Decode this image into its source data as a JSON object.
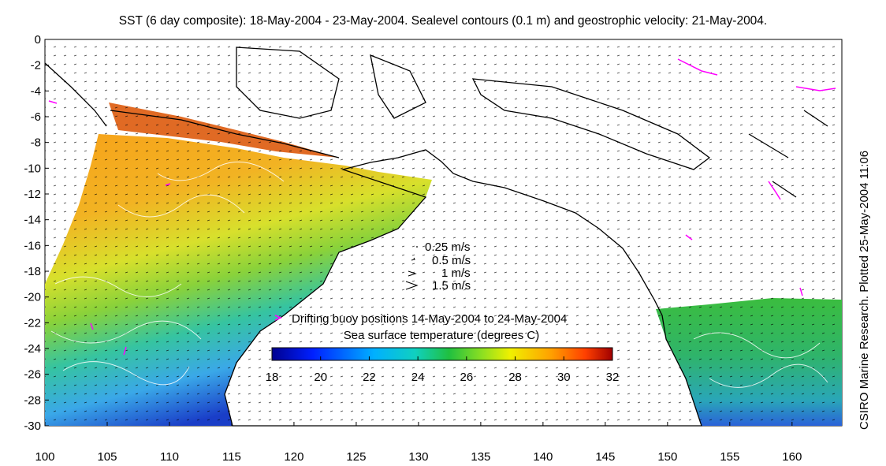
{
  "title": "SST (6 day composite): 18-May-2004 - 23-May-2004. Sealevel contours (0.1 m) and geostrophic velocity: 21-May-2004.",
  "credit": "CSIRO Marine Research. Plotted 25-May-2004 11:06",
  "x_ticks": [
    "100",
    "105",
    "110",
    "115",
    "120",
    "125",
    "130",
    "135",
    "140",
    "145",
    "150",
    "155",
    "160"
  ],
  "y_ticks": [
    "0",
    "-2",
    "-4",
    "-6",
    "-8",
    "-10",
    "-12",
    "-14",
    "-16",
    "-18",
    "-20",
    "-22",
    "-24",
    "-26",
    "-28",
    "-30"
  ],
  "velocity_legend": [
    "0.25 m/s",
    "0.5 m/s",
    "1 m/s",
    "1.5 m/s"
  ],
  "buoy_legend": "Drifting buoy positions 14-May-2004 to 24-May-2004",
  "colorbar_title": "Sea surface temperature (degrees C)",
  "colorbar_ticks": [
    "18",
    "20",
    "22",
    "24",
    "26",
    "28",
    "30",
    "32"
  ],
  "colors": {
    "land_outline": "#000000",
    "buoy": "#ff00ff",
    "contour": "#ffffff"
  },
  "chart_data": {
    "type": "heatmap",
    "x_range": [
      100,
      164
    ],
    "y_range": [
      -30,
      0
    ],
    "color_range": [
      18,
      32
    ],
    "colormap": "jet"
  }
}
